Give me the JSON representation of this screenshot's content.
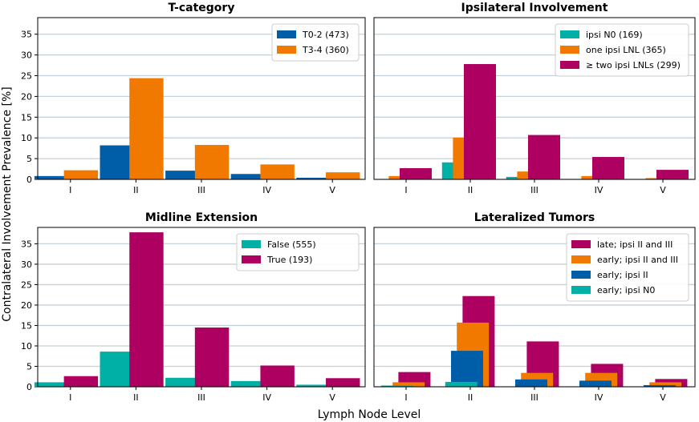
{
  "figure": {
    "ylabel": "Contralateral Involvement Prevalence [%]",
    "xlabel": "Lymph Node Level"
  },
  "colors": {
    "blue": "#005ea8",
    "orange": "#f17900",
    "teal": "#00afa5",
    "magenta": "#ae0060",
    "grid": "#c5d1d8"
  },
  "chart_data": [
    {
      "type": "bar",
      "title": "T-category",
      "categories": [
        "I",
        "II",
        "III",
        "IV",
        "V"
      ],
      "ylim": [
        0,
        39
      ],
      "yticks": [
        0,
        5,
        10,
        15,
        20,
        25,
        30,
        35
      ],
      "grid": "horizontal",
      "legend_position": "top-right",
      "series": [
        {
          "name": "T0-2 (473)",
          "color": "#005ea8",
          "values": [
            0.8,
            8.2,
            2.1,
            1.3,
            0.4
          ]
        },
        {
          "name": "T3-4 (360)",
          "color": "#f17900",
          "values": [
            2.2,
            24.4,
            8.3,
            3.6,
            1.7
          ]
        }
      ]
    },
    {
      "type": "bar",
      "title": "Ipsilateral Involvement",
      "categories": [
        "I",
        "II",
        "III",
        "IV",
        "V"
      ],
      "ylim": [
        0,
        39
      ],
      "yticks": [
        0,
        5,
        10,
        15,
        20,
        25,
        30,
        35
      ],
      "grid": "horizontal",
      "legend_position": "top-right",
      "series": [
        {
          "name": "ipsi N0 (169)",
          "color": "#00afa5",
          "values": [
            0.0,
            4.1,
            0.6,
            0.0,
            0.0
          ]
        },
        {
          "name": "one ipsi LNL (365)",
          "color": "#f17900",
          "values": [
            0.8,
            10.1,
            1.9,
            0.8,
            0.3
          ]
        },
        {
          "name": "≥ two ipsi LNLs (299)",
          "color": "#ae0060",
          "values": [
            2.7,
            27.8,
            10.7,
            5.4,
            2.3
          ]
        }
      ]
    },
    {
      "type": "bar",
      "title": "Midline Extension",
      "categories": [
        "I",
        "II",
        "III",
        "IV",
        "V"
      ],
      "ylim": [
        0,
        39
      ],
      "yticks": [
        0,
        5,
        10,
        15,
        20,
        25,
        30,
        35
      ],
      "grid": "horizontal",
      "legend_position": "top-right",
      "series": [
        {
          "name": "False (555)",
          "color": "#00afa5",
          "values": [
            1.1,
            8.6,
            2.2,
            1.4,
            0.5
          ]
        },
        {
          "name": "True (193)",
          "color": "#ae0060",
          "values": [
            2.6,
            37.8,
            14.5,
            5.2,
            2.1
          ]
        }
      ]
    },
    {
      "type": "bar",
      "title": "Lateralized Tumors",
      "categories": [
        "I",
        "II",
        "III",
        "IV",
        "V"
      ],
      "ylim": [
        0,
        39
      ],
      "yticks": [
        0,
        5,
        10,
        15,
        20,
        25,
        30,
        35
      ],
      "grid": "horizontal",
      "legend_position": "top-right",
      "series": [
        {
          "name": "late; ipsi II and III",
          "color": "#ae0060",
          "values": [
            3.6,
            22.2,
            11.1,
            5.6,
            1.9
          ]
        },
        {
          "name": "early; ipsi II and III",
          "color": "#f17900",
          "values": [
            1.1,
            15.7,
            3.4,
            3.4,
            1.1
          ]
        },
        {
          "name": "early; ipsi II",
          "color": "#005ea8",
          "values": [
            0.0,
            8.8,
            1.8,
            1.5,
            0.4
          ]
        },
        {
          "name": "early; ipsi N0",
          "color": "#00afa5",
          "values": [
            0.3,
            1.2,
            0.0,
            0.0,
            0.0
          ]
        }
      ]
    }
  ]
}
